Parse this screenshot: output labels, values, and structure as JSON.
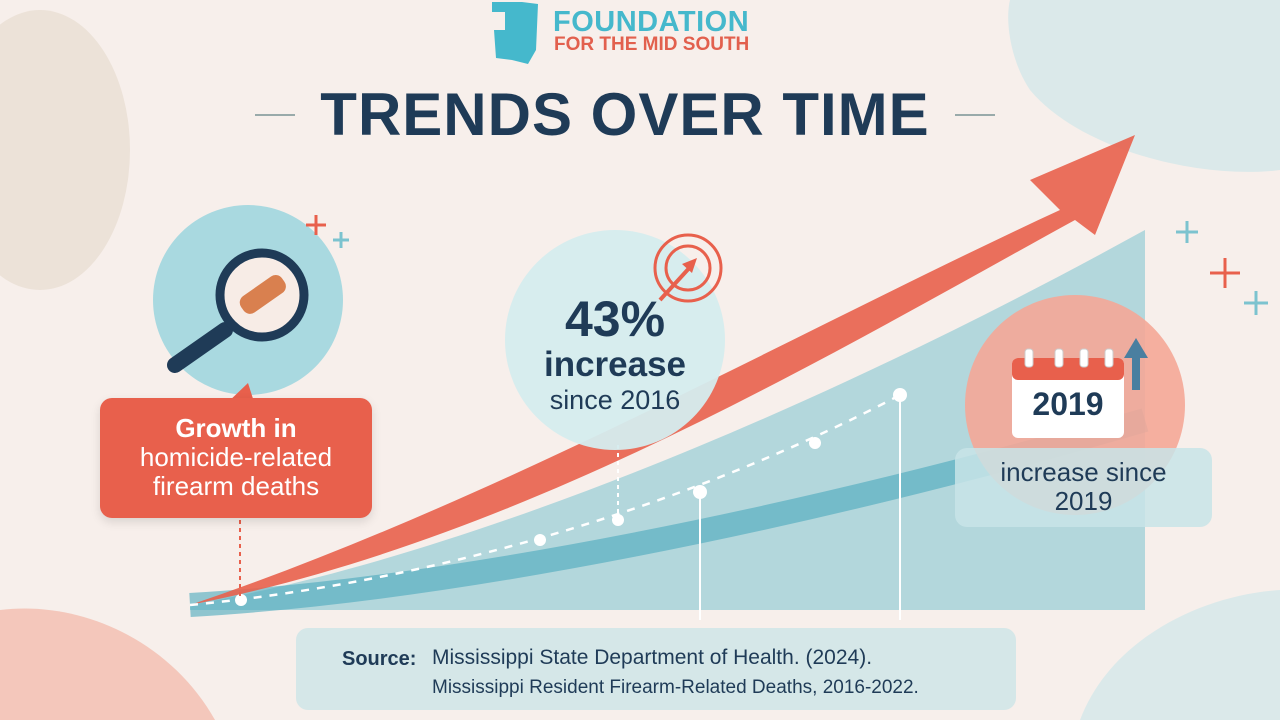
{
  "brand": {
    "line1": "FOUNDATION",
    "line2": "FOR THE MID SOUTH"
  },
  "title": "TRENDS OVER TIME",
  "callout": {
    "line1": "Growth in",
    "line2": "homicide-related",
    "line3": "firearm deaths"
  },
  "stat": {
    "value": "43%",
    "label": "increase",
    "since": "since 2016"
  },
  "calendar": {
    "year": "2019"
  },
  "right_box": {
    "line1": "increase since",
    "line2": "2019"
  },
  "source": {
    "label": "Source:",
    "line1": "Mississippi State Department of Health. (2024).",
    "line2": "Mississippi Resident Firearm-Related Deaths, 2016-2022."
  },
  "colors": {
    "navy": "#1f3b57",
    "teal": "#45b8cc",
    "coral": "#e8604c",
    "background": "#f7efeb"
  }
}
